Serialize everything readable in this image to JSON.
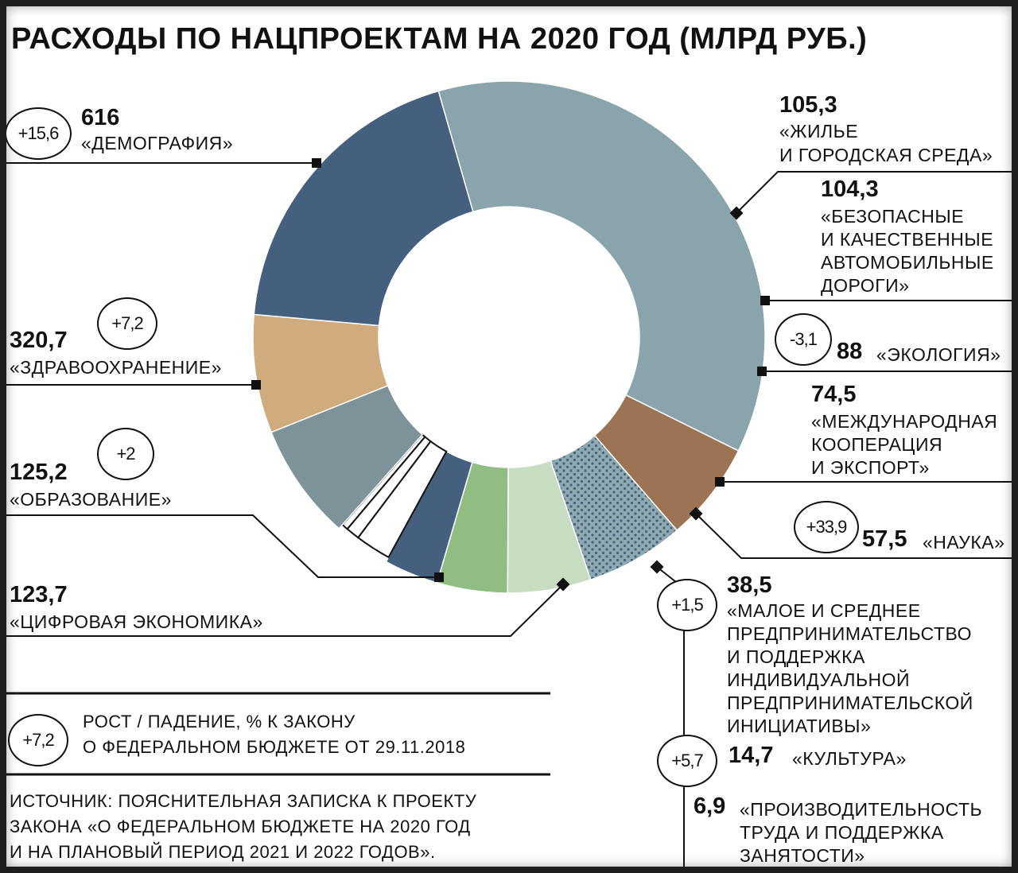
{
  "title": "РАСХОДЫ ПО НАЦПРОЕКТАМ НА 2020 ГОД  (МЛРД РУБ.)",
  "colors": {
    "demography": "#89a4ab",
    "housing": "#9c7353",
    "roads": "#8aa5ad",
    "ecology": "#c8dcc2",
    "export": "#8fbd82",
    "science": "#45607e",
    "sme": "#ffffff",
    "culture": "#ffffff",
    "productivity": "#ffffff",
    "digital": "#7d9399",
    "education": "#cfab7e",
    "health": "#45607e"
  },
  "chart_data": {
    "type": "pie",
    "title": "РАСХОДЫ ПО НАЦПРОЕКТАМ НА 2020 ГОД  (МЛРД РУБ.)",
    "unit": "млрд руб.",
    "slices": [
      {
        "value_text": "616",
        "value": 616,
        "label": "«ДЕМОГРАФИЯ»",
        "change": "+15,6"
      },
      {
        "value_text": "105,3",
        "value": 105.3,
        "label_lines": [
          "«ЖИЛЬЕ",
          "И ГОРОДСКАЯ СРЕДА»"
        ],
        "change": ""
      },
      {
        "value_text": "104,3",
        "value": 104.3,
        "label_lines": [
          "«БЕЗОПАСНЫЕ",
          "И КАЧЕСТВЕННЫЕ",
          "АВТОМОБИЛЬНЫЕ",
          "ДОРОГИ»"
        ],
        "change": ""
      },
      {
        "value_text": "88",
        "value": 88,
        "label": "«ЭКОЛОГИЯ»",
        "change": "-3,1"
      },
      {
        "value_text": "74,5",
        "value": 74.5,
        "label_lines": [
          "«МЕЖДУНАРОДНАЯ",
          "КООПЕРАЦИЯ",
          "И ЭКСПОРТ»"
        ],
        "change": ""
      },
      {
        "value_text": "57,5",
        "value": 57.5,
        "label": "«НАУКА»",
        "change": "+33,9"
      },
      {
        "value_text": "38,5",
        "value": 38.5,
        "label_lines": [
          "«МАЛОЕ И СРЕДНЕЕ",
          "ПРЕДПРИНИМАТЕЛЬСТВО",
          "И ПОДДЕРЖКА",
          "ИНДИВИДУАЛЬНОЙ",
          "ПРЕДПРИНИМАТЕЛЬСКОЙ",
          "ИНИЦИАТИВЫ»"
        ],
        "change": "+1,5"
      },
      {
        "value_text": "14,7",
        "value": 14.7,
        "label": "«КУЛЬТУРА»",
        "change": "+5,7"
      },
      {
        "value_text": "6,9",
        "value": 6.9,
        "label_lines": [
          "«ПРОИЗВОДИТЕЛЬНОСТЬ",
          "ТРУДА И ПОДДЕРЖКА",
          "ЗАНЯТОСТИ»"
        ],
        "change": ""
      },
      {
        "value_text": "123,7",
        "value": 123.7,
        "label": "«ЦИФРОВАЯ ЭКОНОМИКА»",
        "change": ""
      },
      {
        "value_text": "125,2",
        "value": 125.2,
        "label": "«ОБРАЗОВАНИЕ»",
        "change": "+2"
      },
      {
        "value_text": "320,7",
        "value": 320.7,
        "label": "«ЗДРАВООХРАНЕНИЕ»",
        "change": "+7,2"
      }
    ]
  },
  "legend": {
    "sample": "+7,2",
    "lines": [
      "РОСТ / ПАДЕНИЕ, % К ЗАКОНУ",
      "О ФЕДЕРАЛЬНОМ БЮДЖЕТЕ ОТ 29.11.2018"
    ]
  },
  "source": {
    "lines": [
      "ИСТОЧНИК: ПОЯСНИТЕЛЬНАЯ ЗАПИСКА К ПРОЕКТУ",
      "ЗАКОНА «О ФЕДЕРАЛЬНОМ БЮДЖЕТЕ НА 2020 ГОД",
      "И НА ПЛАНОВЫЙ ПЕРИОД 2021 И 2022 ГОДОВ»."
    ]
  }
}
